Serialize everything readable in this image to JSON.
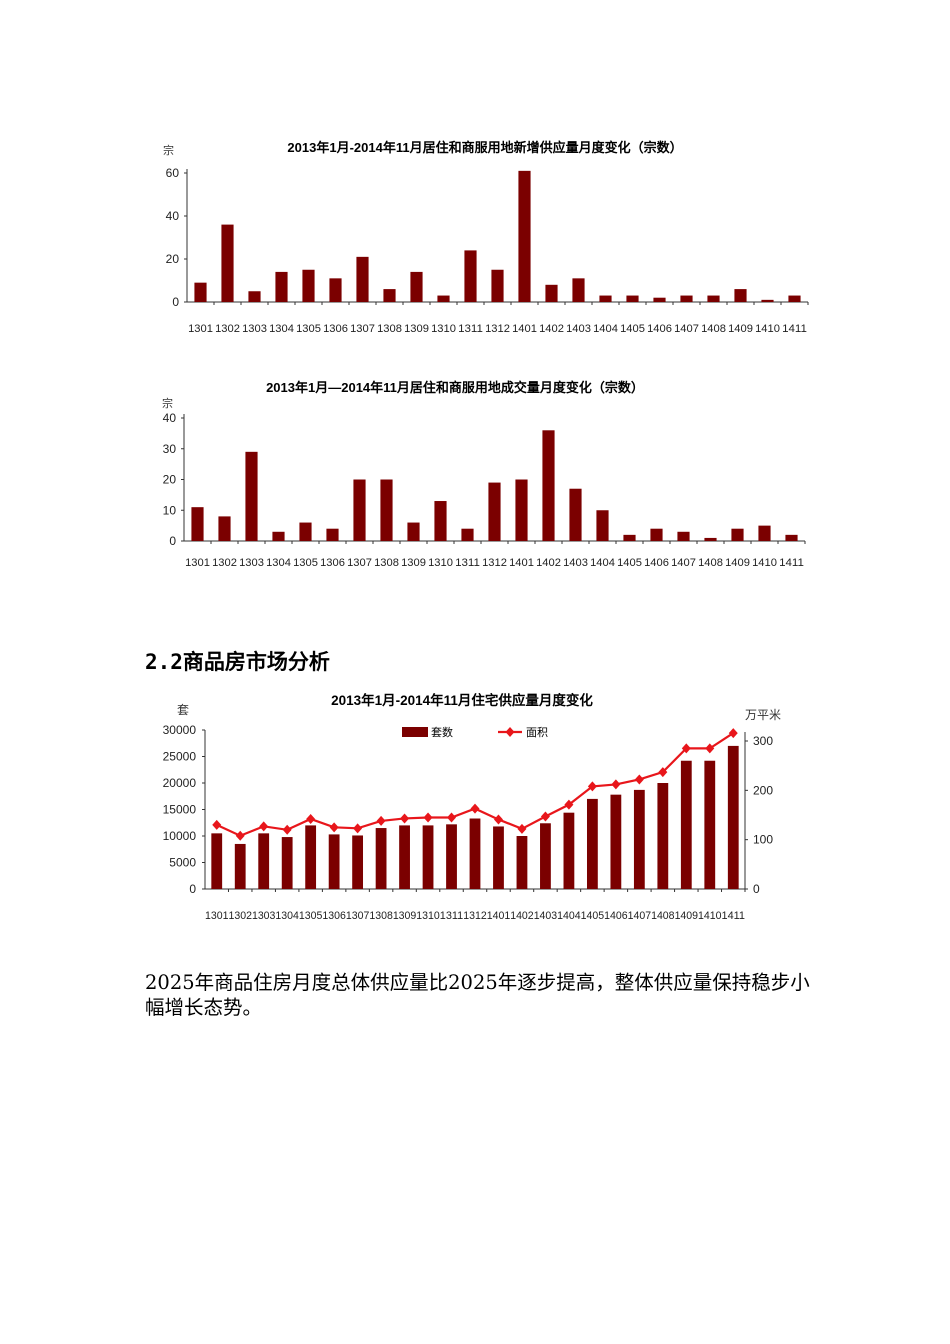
{
  "section": {
    "heading": "2.2商品房市场分析",
    "paragraph": "2025年商品住房月度总体供应量比2025年逐步提高，整体供应量保持稳步小幅增长态势。"
  },
  "colors": {
    "bar": "#7b0000",
    "line": "#e8161b",
    "axis": "#333333"
  },
  "chart_data": [
    {
      "type": "bar",
      "title": "2013年1月-2014年11月居住和商服用地新增供应量月度变化（宗数）",
      "ylabel": "宗",
      "xlabel": "",
      "ylim": [
        0,
        60
      ],
      "yticks": [
        0,
        20,
        40,
        60
      ],
      "grid": false,
      "categories": [
        "1301",
        "1302",
        "1303",
        "1304",
        "1305",
        "1306",
        "1307",
        "1308",
        "1309",
        "1310",
        "1311",
        "1312",
        "1401",
        "1402",
        "1403",
        "1404",
        "1405",
        "1406",
        "1407",
        "1408",
        "1409",
        "1410",
        "1411"
      ],
      "values": [
        9,
        36,
        5,
        14,
        15,
        11,
        21,
        6,
        14,
        3,
        24,
        15,
        61,
        8,
        11,
        3,
        3,
        2,
        3,
        3,
        6,
        1,
        3
      ]
    },
    {
      "type": "bar",
      "title": "2013年1月—2014年11月居住和商服用地成交量月度变化（宗数）",
      "ylabel": "宗",
      "xlabel": "",
      "ylim": [
        0,
        40
      ],
      "yticks": [
        0,
        10,
        20,
        30,
        40
      ],
      "grid": false,
      "categories": [
        "1301",
        "1302",
        "1303",
        "1304",
        "1305",
        "1306",
        "1307",
        "1308",
        "1309",
        "1310",
        "1311",
        "1312",
        "1401",
        "1402",
        "1403",
        "1404",
        "1405",
        "1406",
        "1407",
        "1408",
        "1409",
        "1410",
        "1411"
      ],
      "values": [
        11,
        8,
        29,
        3,
        6,
        4,
        20,
        20,
        6,
        13,
        4,
        19,
        20,
        36,
        17,
        10,
        2,
        4,
        3,
        1,
        4,
        5,
        2
      ]
    },
    {
      "type": "bar+line",
      "title": "2013年1月-2014年11月住宅供应量月度变化",
      "ylabel": "套",
      "ylabel_right": "万平米",
      "xlabel": "",
      "ylim": [
        0,
        30000
      ],
      "ylim_right": [
        0,
        320
      ],
      "yticks": [
        0,
        5000,
        10000,
        15000,
        20000,
        25000,
        30000
      ],
      "yticks_right": [
        0,
        100,
        200,
        300
      ],
      "grid": false,
      "legend": [
        "套数",
        "面积"
      ],
      "legend_position": "top-center",
      "categories": [
        "1301",
        "1302",
        "1303",
        "1304",
        "1305",
        "1306",
        "1307",
        "1308",
        "1309",
        "1310",
        "1311",
        "1312",
        "1401",
        "1402",
        "1403",
        "1404",
        "1405",
        "1406",
        "1407",
        "1408",
        "1409",
        "1410",
        "1411"
      ],
      "series": [
        {
          "name": "套数",
          "type": "bar",
          "axis": "left",
          "values": [
            10500,
            8500,
            10500,
            9800,
            12000,
            10300,
            10100,
            11500,
            12000,
            12000,
            12200,
            13300,
            11800,
            10000,
            12400,
            14400,
            17000,
            17800,
            18700,
            20000,
            24200,
            24200,
            27000
          ]
        },
        {
          "name": "面积",
          "type": "line",
          "axis": "right",
          "values": [
            130,
            108,
            127,
            120,
            142,
            125,
            123,
            138,
            143,
            145,
            145,
            163,
            141,
            122,
            147,
            171,
            208,
            212,
            222,
            237,
            285,
            285,
            316
          ]
        }
      ]
    }
  ]
}
